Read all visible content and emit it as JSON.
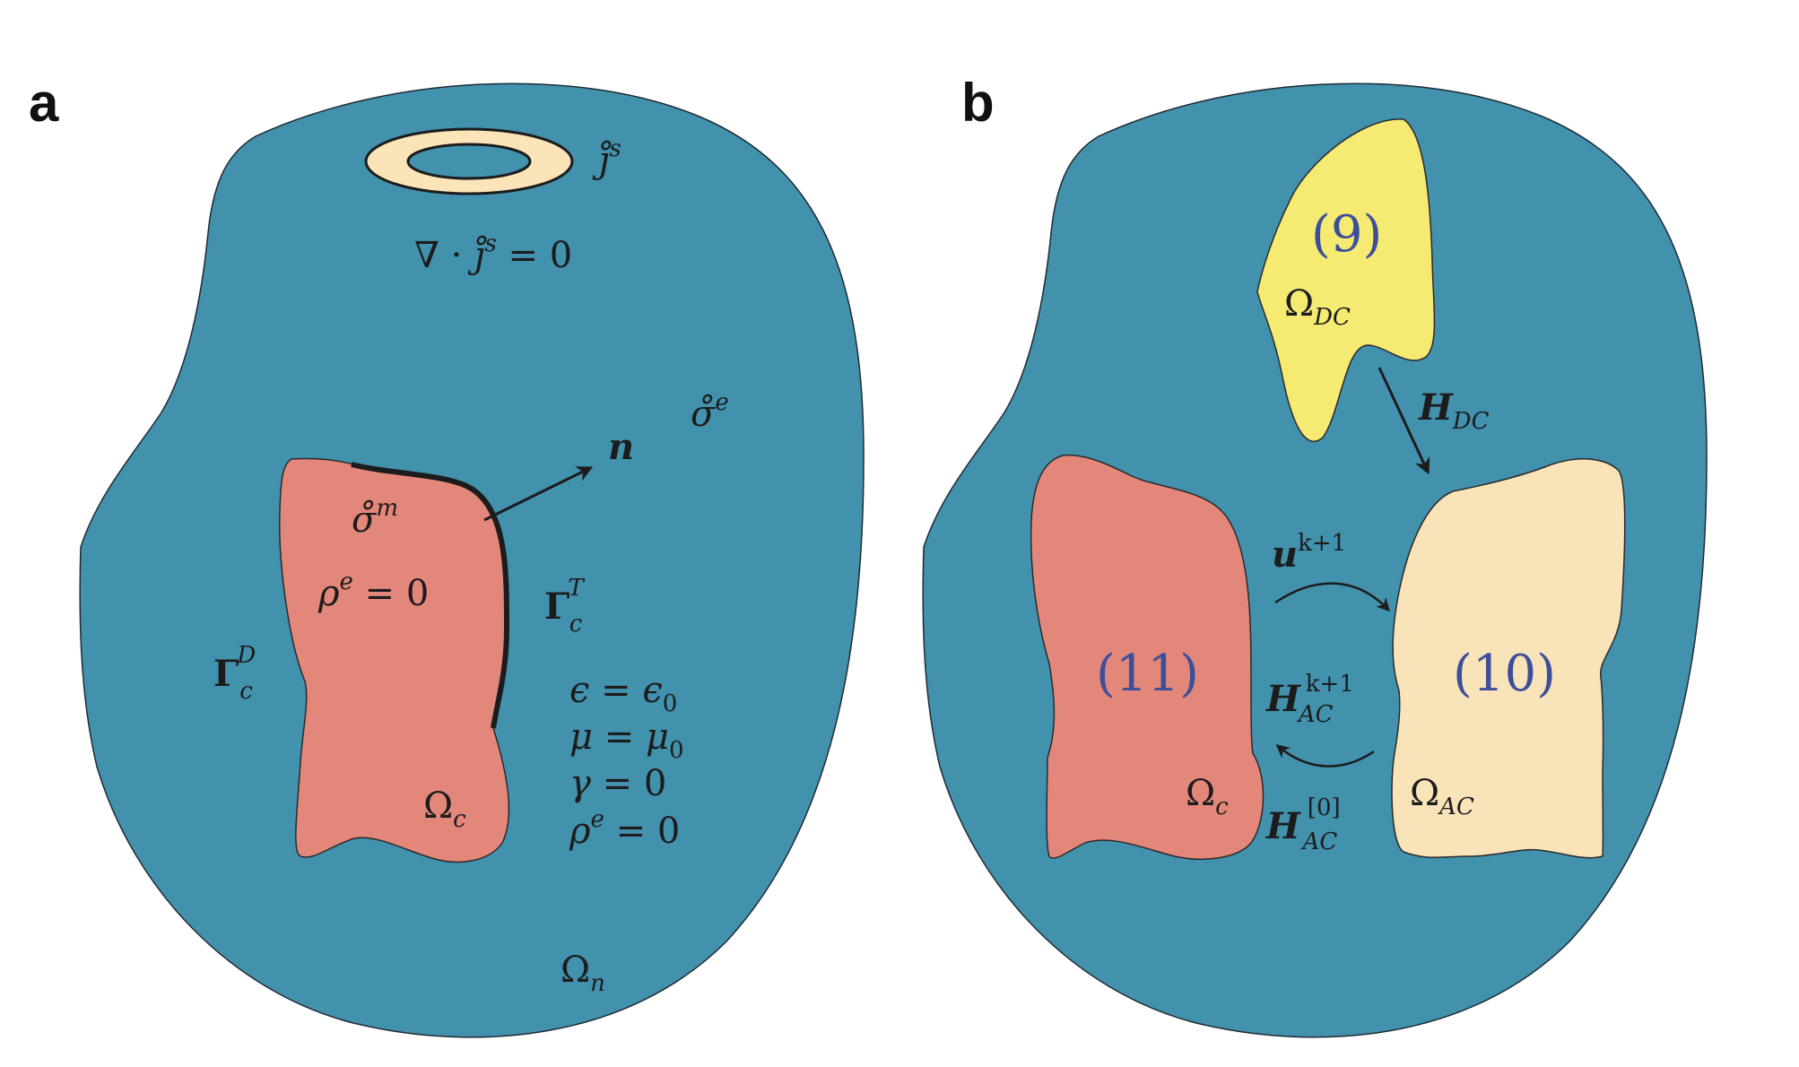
{
  "panels": {
    "a": {
      "label": "a",
      "source_current": {
        "symbol": "j̊",
        "sup": "s"
      },
      "divergence_eq": {
        "lhs": "∇ · ",
        "symbol": "j̊",
        "sup": "s",
        "rhs": " = 0"
      },
      "sigma_e": {
        "symbol": "σ̊",
        "sup": "e"
      },
      "normal": "n",
      "sigma_m": {
        "symbol": "σ̊",
        "sup": "m"
      },
      "rho_conductor": {
        "symbol": "ρ",
        "sup": "e",
        "rhs": " = 0"
      },
      "gamma_T": {
        "symbol": "Γ",
        "sub": "c",
        "sup": "T"
      },
      "gamma_D": {
        "symbol": "Γ",
        "sub": "c",
        "sup": "D"
      },
      "omega_c": {
        "symbol": "Ω",
        "sub": "c"
      },
      "omega_n": {
        "symbol": "Ω",
        "sub": "n"
      },
      "conditions": [
        {
          "lhs": "ϵ",
          "op": " = ",
          "rhs": "ϵ",
          "sub": "0"
        },
        {
          "lhs": "μ",
          "op": " = ",
          "rhs": "μ",
          "sub": "0"
        },
        {
          "lhs": "γ",
          "op": " = ",
          "rhs": "0",
          "sub": ""
        },
        {
          "lhs": "ρ",
          "sup": "e",
          "op": " = ",
          "rhs": "0",
          "sub": ""
        }
      ]
    },
    "b": {
      "label": "b",
      "eq9": "(9)",
      "eq10": "(10)",
      "eq11": "(11)",
      "omega_dc": {
        "symbol": "Ω",
        "sub": "DC"
      },
      "h_dc": {
        "symbol": "H",
        "sub": "DC"
      },
      "u_k1": {
        "symbol": "u",
        "sup": "k+1"
      },
      "h_ac_k1": {
        "symbol": "H",
        "sup": "k+1",
        "sub": "AC"
      },
      "h_ac_0": {
        "symbol": "H",
        "sup": "[0]",
        "sub": "AC"
      },
      "omega_c": {
        "symbol": "Ω",
        "sub": "c"
      },
      "omega_ac": {
        "symbol": "Ω",
        "sub": "AC"
      }
    }
  },
  "colors": {
    "domain": "#4291ad",
    "conductor": "#e4877b",
    "coil": "#fae4b8",
    "dc_region": "#f5ea72",
    "ac_region": "#f9e4b9",
    "equation_number": "#3d4f9a"
  }
}
